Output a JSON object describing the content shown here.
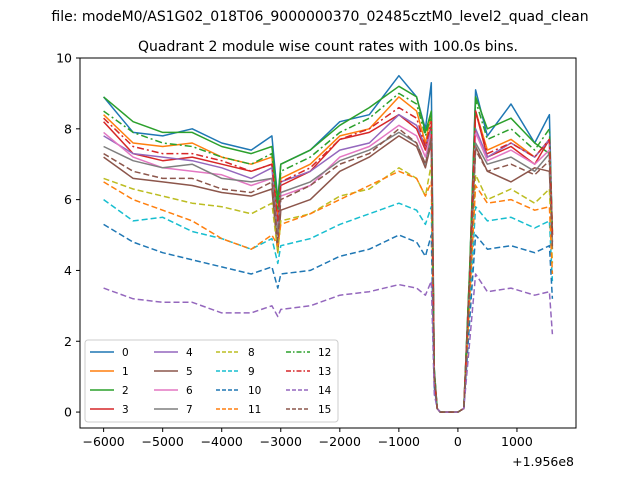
{
  "chart_data": {
    "type": "line",
    "suptitle": "file: modeM0/AS1G02_018T06_9000000370_02485cztM0_level2_quad_clean",
    "title": "Quadrant 2 module wise count rates with 100.0s bins.",
    "xlabel": "",
    "ylabel": "",
    "x_offset_label": "+1.956e8",
    "xlim": [
      -6400,
      2000
    ],
    "ylim": [
      -0.45,
      10.0
    ],
    "xticks": [
      -6000,
      -5000,
      -4000,
      -3000,
      -2000,
      -1000,
      0,
      1000
    ],
    "xtick_labels": [
      "−6000",
      "−5000",
      "−4000",
      "−3000",
      "−2000",
      "−1000",
      "0",
      "1000"
    ],
    "yticks": [
      0,
      2,
      4,
      6,
      8,
      10
    ],
    "ytick_labels": [
      "0",
      "2",
      "4",
      "6",
      "8",
      "10"
    ],
    "legend_position": "lower-left",
    "legend_columns": 4,
    "x": [
      -6000,
      -5500,
      -5000,
      -4500,
      -4000,
      -3500,
      -3150,
      -3050,
      -3000,
      -2500,
      -2000,
      -1500,
      -1000,
      -700,
      -550,
      -450,
      -400,
      -350,
      -300,
      -200,
      0,
      100,
      200,
      300,
      500,
      900,
      1300,
      1550,
      1600
    ],
    "series": [
      {
        "name": "0",
        "color": "#1f77b4",
        "dash": "solid",
        "values": [
          8.9,
          7.9,
          7.8,
          8.0,
          7.6,
          7.4,
          7.8,
          6.0,
          7.0,
          7.4,
          8.2,
          8.4,
          9.5,
          8.9,
          8.0,
          9.3,
          1.2,
          0.1,
          0,
          0,
          0,
          0.1,
          4.0,
          9.1,
          7.8,
          8.7,
          7.6,
          8.4,
          5.0
        ]
      },
      {
        "name": "1",
        "color": "#ff7f0e",
        "dash": "solid",
        "values": [
          8.4,
          7.6,
          7.5,
          7.6,
          7.2,
          7.0,
          7.2,
          5.5,
          6.6,
          7.0,
          7.8,
          8.0,
          8.9,
          8.5,
          7.6,
          8.4,
          1.1,
          0.1,
          0,
          0,
          0,
          0.1,
          3.9,
          8.5,
          7.4,
          7.7,
          7.2,
          7.7,
          5.0
        ]
      },
      {
        "name": "2",
        "color": "#2ca02c",
        "dash": "solid",
        "values": [
          8.9,
          8.2,
          7.9,
          7.9,
          7.5,
          7.3,
          7.5,
          5.9,
          7.0,
          7.4,
          8.1,
          8.6,
          9.2,
          8.9,
          7.9,
          8.5,
          1.2,
          0.1,
          0,
          0,
          0,
          0.1,
          4.1,
          8.9,
          8.0,
          8.3,
          7.6,
          7.3,
          5.1
        ]
      },
      {
        "name": "3",
        "color": "#d62728",
        "dash": "solid",
        "values": [
          8.2,
          7.3,
          7.1,
          7.2,
          7.0,
          6.8,
          7.0,
          5.2,
          6.4,
          6.8,
          7.7,
          7.9,
          8.4,
          8.0,
          7.4,
          8.1,
          1.0,
          0.1,
          0,
          0,
          0,
          0.1,
          3.7,
          8.5,
          7.2,
          7.5,
          7.0,
          7.7,
          5.0
        ]
      },
      {
        "name": "4",
        "color": "#9467bd",
        "dash": "solid",
        "values": [
          7.8,
          7.3,
          7.2,
          7.1,
          6.9,
          6.6,
          6.9,
          5.1,
          6.5,
          6.8,
          7.4,
          7.6,
          8.4,
          8.1,
          7.5,
          8.0,
          1.0,
          0.1,
          0,
          0,
          0,
          0.1,
          3.8,
          8.0,
          7.2,
          7.6,
          7.2,
          7.7,
          4.8
        ]
      },
      {
        "name": "5",
        "color": "#8c564b",
        "dash": "solid",
        "values": [
          7.2,
          6.6,
          6.5,
          6.4,
          6.2,
          6.1,
          6.3,
          4.5,
          5.7,
          6.0,
          6.8,
          7.2,
          7.8,
          7.5,
          6.9,
          7.6,
          1.0,
          0.1,
          0,
          0,
          0,
          0.1,
          3.6,
          7.5,
          6.8,
          6.5,
          6.9,
          6.8,
          4.6
        ]
      },
      {
        "name": "6",
        "color": "#e377c2",
        "dash": "solid",
        "values": [
          7.9,
          7.2,
          6.9,
          6.8,
          6.7,
          6.4,
          6.6,
          5.1,
          6.1,
          6.4,
          7.2,
          7.5,
          8.1,
          7.8,
          7.2,
          7.9,
          1.0,
          0.1,
          0,
          0,
          0,
          0.1,
          3.7,
          7.9,
          7.1,
          7.4,
          7.0,
          7.4,
          4.8
        ]
      },
      {
        "name": "7",
        "color": "#7f7f7f",
        "dash": "solid",
        "values": [
          7.5,
          7.1,
          6.9,
          7.0,
          6.6,
          6.5,
          6.6,
          5.0,
          6.2,
          6.5,
          7.1,
          7.4,
          7.9,
          7.6,
          7.0,
          7.8,
          1.0,
          0.1,
          0,
          0,
          0,
          0.1,
          3.7,
          7.6,
          7.0,
          7.2,
          6.8,
          7.3,
          4.7
        ]
      },
      {
        "name": "8",
        "color": "#bcbd22",
        "dash": "dash",
        "values": [
          6.6,
          6.3,
          6.1,
          5.9,
          5.8,
          5.6,
          5.9,
          4.5,
          5.4,
          5.6,
          6.1,
          6.3,
          6.9,
          6.6,
          6.1,
          7.0,
          0.9,
          0.1,
          0,
          0,
          0,
          0.1,
          3.3,
          6.7,
          6.0,
          6.3,
          5.9,
          6.3,
          4.2
        ]
      },
      {
        "name": "9",
        "color": "#17becf",
        "dash": "dash",
        "values": [
          6.0,
          5.4,
          5.5,
          5.1,
          4.9,
          4.6,
          4.9,
          4.2,
          4.7,
          4.9,
          5.3,
          5.6,
          5.9,
          5.7,
          5.3,
          5.8,
          0.8,
          0.1,
          0,
          0,
          0,
          0.1,
          3.0,
          5.8,
          5.4,
          5.5,
          5.2,
          5.4,
          3.7
        ]
      },
      {
        "name": "10",
        "color": "#1f77b4",
        "dash": "dash",
        "values": [
          5.3,
          4.8,
          4.5,
          4.3,
          4.1,
          3.9,
          4.1,
          3.5,
          3.9,
          4.0,
          4.4,
          4.6,
          5.0,
          4.8,
          4.4,
          5.0,
          0.7,
          0.1,
          0,
          0,
          0,
          0.1,
          2.6,
          5.0,
          4.6,
          4.7,
          4.5,
          4.7,
          3.2
        ]
      },
      {
        "name": "11",
        "color": "#ff7f0e",
        "dash": "dash",
        "values": [
          6.5,
          6.0,
          5.7,
          5.4,
          4.9,
          4.6,
          5.0,
          4.7,
          5.3,
          5.6,
          6.0,
          6.4,
          6.8,
          6.6,
          6.1,
          6.5,
          0.9,
          0.1,
          0,
          0,
          0,
          0.1,
          3.2,
          6.4,
          5.9,
          6.0,
          5.7,
          5.8,
          3.9
        ]
      },
      {
        "name": "12",
        "color": "#2ca02c",
        "dash": "dashdot",
        "values": [
          8.5,
          7.9,
          7.6,
          7.5,
          7.2,
          7.0,
          7.3,
          5.7,
          6.8,
          7.2,
          7.9,
          8.3,
          9.0,
          8.7,
          7.8,
          8.4,
          1.1,
          0.1,
          0,
          0,
          0,
          0.1,
          4.0,
          8.8,
          7.7,
          8.0,
          7.4,
          8.0,
          5.1
        ]
      },
      {
        "name": "13",
        "color": "#d62728",
        "dash": "dashdot",
        "values": [
          8.3,
          7.5,
          7.3,
          7.3,
          7.1,
          6.8,
          7.0,
          5.4,
          6.5,
          6.9,
          7.7,
          8.0,
          8.6,
          8.3,
          7.5,
          8.2,
          1.0,
          0.1,
          0,
          0,
          0,
          0.1,
          3.8,
          8.5,
          7.3,
          7.6,
          7.2,
          7.7,
          5.0
        ]
      },
      {
        "name": "14",
        "color": "#9467bd",
        "dash": "dash",
        "values": [
          3.5,
          3.2,
          3.1,
          3.1,
          2.8,
          2.8,
          3.0,
          2.7,
          2.9,
          3.0,
          3.3,
          3.4,
          3.6,
          3.5,
          3.3,
          3.7,
          0.5,
          0.1,
          0,
          0,
          0,
          0.1,
          2.0,
          3.9,
          3.4,
          3.5,
          3.3,
          3.4,
          2.2
        ]
      },
      {
        "name": "15",
        "color": "#8c564b",
        "dash": "dash",
        "values": [
          7.3,
          6.8,
          6.6,
          6.6,
          6.3,
          6.2,
          6.5,
          4.8,
          6.0,
          6.4,
          7.0,
          7.3,
          8.0,
          7.6,
          7.0,
          7.7,
          1.0,
          0.1,
          0,
          0,
          0,
          0.1,
          3.6,
          7.4,
          6.8,
          7.0,
          6.7,
          7.1,
          4.6
        ]
      }
    ]
  }
}
